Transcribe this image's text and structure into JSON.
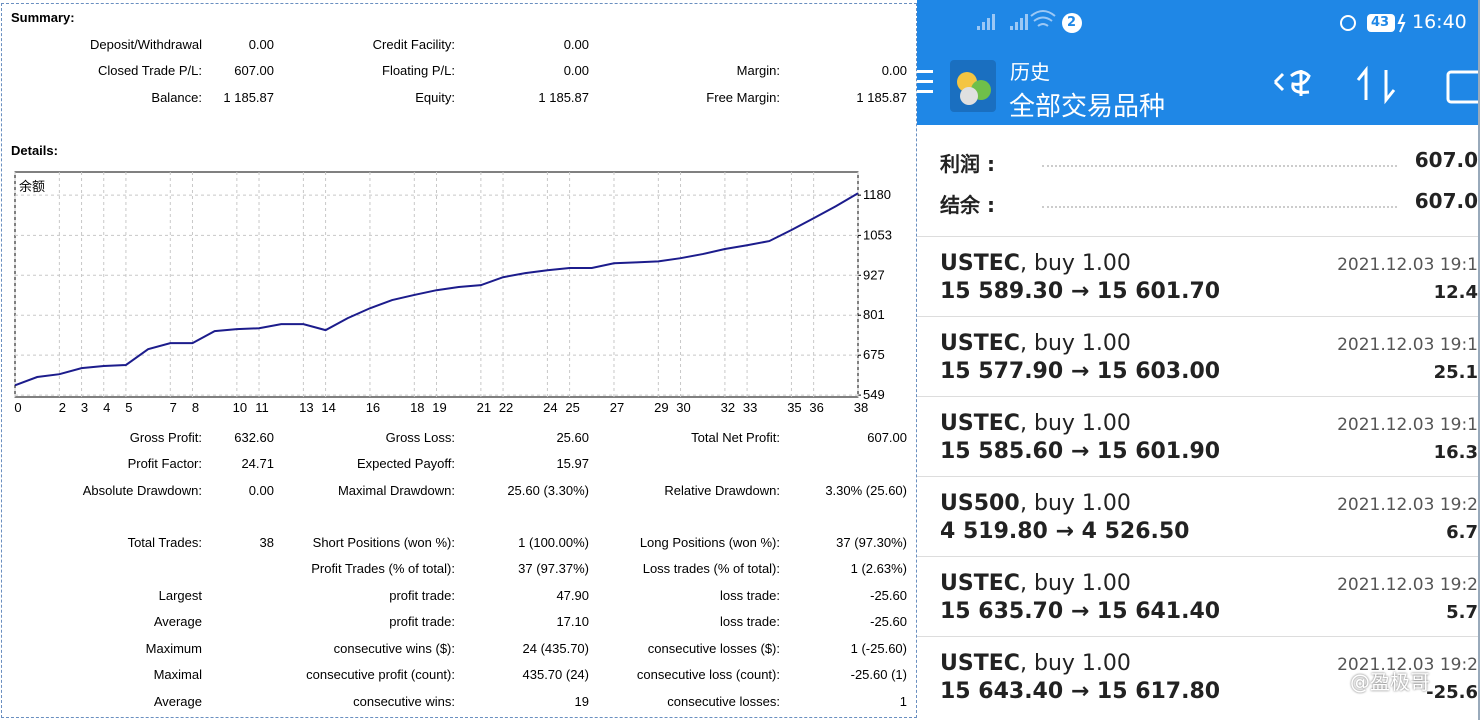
{
  "summary": {
    "title": "Summary:",
    "rows": [
      [
        "Deposit/Withdrawal",
        "0.00",
        "Credit Facility:",
        "0.00",
        null,
        null
      ],
      [
        "Closed Trade P/L:",
        "607.00",
        "Floating P/L:",
        "0.00",
        "Margin:",
        "0.00"
      ],
      [
        "Balance:",
        "1 185.87",
        "Equity:",
        "1 185.87",
        "Free Margin:",
        "1 185.87"
      ]
    ]
  },
  "details_title": "Details:",
  "chart_data": {
    "type": "line",
    "title": "余额",
    "x": [
      0,
      1,
      2,
      3,
      4,
      5,
      6,
      7,
      8,
      9,
      10,
      11,
      12,
      13,
      14,
      15,
      16,
      17,
      18,
      19,
      20,
      21,
      22,
      23,
      24,
      25,
      26,
      27,
      28,
      29,
      30,
      31,
      32,
      33,
      34,
      35,
      36,
      37,
      38
    ],
    "values": [
      580,
      606,
      615,
      634,
      641,
      644,
      694,
      713,
      713,
      751,
      757,
      760,
      773,
      773,
      754,
      792,
      823,
      849,
      865,
      880,
      890,
      896,
      921,
      934,
      943,
      950,
      950,
      965,
      968,
      971,
      981,
      994,
      1010,
      1022,
      1035,
      1070,
      1107,
      1145,
      1186
    ],
    "color": "#1c1c8c",
    "xlim": [
      0,
      38
    ],
    "xticks": [
      0,
      2,
      3,
      4,
      5,
      7,
      8,
      10,
      11,
      13,
      14,
      16,
      18,
      19,
      21,
      22,
      24,
      25,
      27,
      29,
      30,
      32,
      33,
      35,
      36,
      38
    ],
    "ylim": [
      543,
      1253
    ],
    "yticks": [
      549,
      675,
      801,
      927,
      1053,
      1180
    ],
    "grid": true
  },
  "stats": {
    "rows": [
      [
        "Gross Profit:",
        "632.60",
        "Gross Loss:",
        "25.60",
        "Total Net Profit:",
        "607.00"
      ],
      [
        "Profit Factor:",
        "24.71",
        "Expected Payoff:",
        "15.97",
        null,
        null
      ],
      [
        "Absolute Drawdown:",
        "0.00",
        "Maximal Drawdown:",
        "25.60 (3.30%)",
        "Relative Drawdown:",
        "3.30% (25.60)"
      ],
      [
        "Total Trades:",
        "38",
        "Short Positions (won %):",
        "1 (100.00%)",
        "Long Positions (won %):",
        "37 (97.30%)"
      ],
      [
        null,
        null,
        "Profit Trades (% of total):",
        "37 (97.37%)",
        "Loss trades (% of total):",
        "1 (2.63%)"
      ],
      [
        "Largest",
        null,
        "profit trade:",
        "47.90",
        "loss trade:",
        "-25.60"
      ],
      [
        "Average",
        null,
        "profit trade:",
        "17.10",
        "loss trade:",
        "-25.60"
      ],
      [
        "Maximum",
        null,
        "consecutive wins ($):",
        "24 (435.70)",
        "consecutive losses ($):",
        "1 (-25.60)"
      ],
      [
        "Maximal",
        null,
        "consecutive profit (count):",
        "435.70 (24)",
        "consecutive loss (count):",
        "-25.60 (1)"
      ],
      [
        "Average",
        null,
        "consecutive wins:",
        "19",
        "consecutive losses:",
        "1"
      ]
    ]
  },
  "phone": {
    "status": {
      "notifications": "2",
      "battery": "43",
      "time": "16:40"
    },
    "header": {
      "title": "历史",
      "subtitle": "全部交易品种"
    },
    "totals": [
      {
        "label": "利润 :",
        "value": "607.0"
      },
      {
        "label": "结余 :",
        "value": "607.0"
      }
    ],
    "trades": [
      {
        "symbol": "USTEC",
        "side": ", buy 1.00",
        "prices": "15 589.30 → 15 601.70",
        "time": "2021.12.03 19:1",
        "profit": "12.4"
      },
      {
        "symbol": "USTEC",
        "side": ", buy 1.00",
        "prices": "15 577.90 → 15 603.00",
        "time": "2021.12.03 19:1",
        "profit": "25.1"
      },
      {
        "symbol": "USTEC",
        "side": ", buy 1.00",
        "prices": "15 585.60 → 15 601.90",
        "time": "2021.12.03 19:1",
        "profit": "16.3"
      },
      {
        "symbol": "US500",
        "side": ", buy 1.00",
        "prices": "4 519.80 → 4 526.50",
        "time": "2021.12.03 19:2",
        "profit": "6.7"
      },
      {
        "symbol": "USTEC",
        "side": ", buy 1.00",
        "prices": "15 635.70 → 15 641.40",
        "time": "2021.12.03 19:2",
        "profit": "5.7"
      },
      {
        "symbol": "USTEC",
        "side": ", buy 1.00",
        "prices": "15 643.40 → 15 617.80",
        "time": "2021.12.03 19:2",
        "profit": "-25.6"
      }
    ],
    "watermark": "@盈极哥"
  }
}
